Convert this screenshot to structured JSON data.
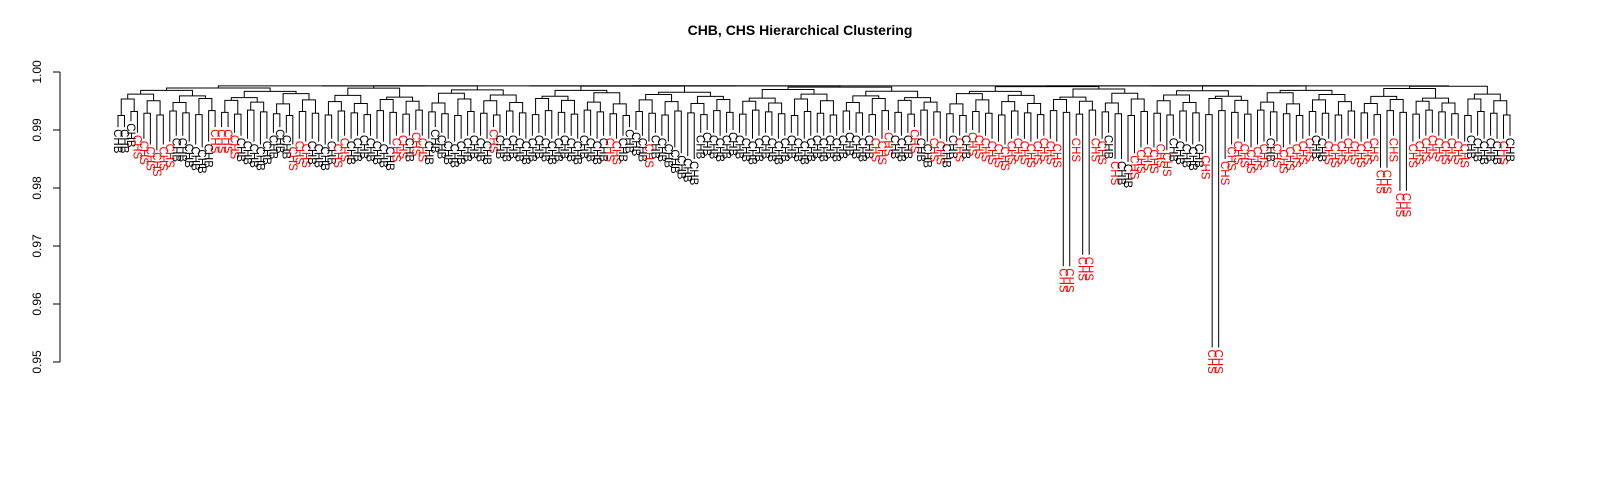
{
  "chart_data": {
    "type": "dendrogram",
    "title": "CHB, CHS Hierarchical Clustering",
    "xlabel": "",
    "ylabel": "",
    "ylim": [
      0.95,
      1.0
    ],
    "y_ticks": [
      "0.95",
      "0.96",
      "0.97",
      "0.98",
      "0.99",
      "1.00"
    ],
    "grid": false,
    "legend": "none",
    "colors": {
      "CHB": "#000000",
      "CHS": "#ff0000",
      "branch": "#000000"
    },
    "groups": [
      "CHB",
      "CHS"
    ],
    "leaves": [
      {
        "label": "CHB",
        "h": 0.9905
      },
      {
        "label": "CHB",
        "h": 0.9905
      },
      {
        "label": "CHB",
        "h": 0.9915
      },
      {
        "label": "CHS",
        "h": 0.9895
      },
      {
        "label": "CHS",
        "h": 0.9885
      },
      {
        "label": "CHS",
        "h": 0.9875
      },
      {
        "label": "CHS",
        "h": 0.9865
      },
      {
        "label": "CHS",
        "h": 0.9875
      },
      {
        "label": "CHS",
        "h": 0.988
      },
      {
        "label": "CHB",
        "h": 0.989
      },
      {
        "label": "CHB",
        "h": 0.989
      },
      {
        "label": "CHB",
        "h": 0.988
      },
      {
        "label": "CHB",
        "h": 0.9875
      },
      {
        "label": "CHB",
        "h": 0.987
      },
      {
        "label": "CHB",
        "h": 0.988
      },
      {
        "label": "CHS",
        "h": 0.9905
      },
      {
        "label": "CHS",
        "h": 0.9905
      },
      {
        "label": "CHS",
        "h": 0.9905
      },
      {
        "label": "CHS",
        "h": 0.9895
      },
      {
        "label": "CHB",
        "h": 0.989
      },
      {
        "label": "CHB",
        "h": 0.9885
      },
      {
        "label": "CHB",
        "h": 0.988
      },
      {
        "label": "CHB",
        "h": 0.9875
      },
      {
        "label": "CHB",
        "h": 0.9885
      },
      {
        "label": "CHB",
        "h": 0.9895
      },
      {
        "label": "CHB",
        "h": 0.9905
      },
      {
        "label": "CHB",
        "h": 0.9895
      },
      {
        "label": "CHS",
        "h": 0.9875
      },
      {
        "label": "CHS",
        "h": 0.9885
      },
      {
        "label": "CHS",
        "h": 0.988
      },
      {
        "label": "CHB",
        "h": 0.9885
      },
      {
        "label": "CHB",
        "h": 0.988
      },
      {
        "label": "CHB",
        "h": 0.9875
      },
      {
        "label": "CHB",
        "h": 0.9885
      },
      {
        "label": "CHS",
        "h": 0.988
      },
      {
        "label": "CHS",
        "h": 0.989
      },
      {
        "label": "CHB",
        "h": 0.9885
      },
      {
        "label": "CHB",
        "h": 0.989
      },
      {
        "label": "CHB",
        "h": 0.9895
      },
      {
        "label": "CHB",
        "h": 0.989
      },
      {
        "label": "CHB",
        "h": 0.9885
      },
      {
        "label": "CHB",
        "h": 0.988
      },
      {
        "label": "CHB",
        "h": 0.9875
      },
      {
        "label": "CHS",
        "h": 0.989
      },
      {
        "label": "CHS",
        "h": 0.9895
      },
      {
        "label": "CHB",
        "h": 0.989
      },
      {
        "label": "CHS",
        "h": 0.99
      },
      {
        "label": "CHS",
        "h": 0.989
      },
      {
        "label": "CHB",
        "h": 0.9885
      },
      {
        "label": "CHB",
        "h": 0.9905
      },
      {
        "label": "CHB",
        "h": 0.9895
      },
      {
        "label": "CHB",
        "h": 0.9885
      },
      {
        "label": "CHB",
        "h": 0.988
      },
      {
        "label": "CHB",
        "h": 0.9885
      },
      {
        "label": "CHB",
        "h": 0.989
      },
      {
        "label": "CHB",
        "h": 0.9895
      },
      {
        "label": "CHB",
        "h": 0.989
      },
      {
        "label": "CHB",
        "h": 0.9885
      },
      {
        "label": "CHS",
        "h": 0.9905
      },
      {
        "label": "CHB",
        "h": 0.9895
      },
      {
        "label": "CHB",
        "h": 0.989
      },
      {
        "label": "CHB",
        "h": 0.9895
      },
      {
        "label": "CHB",
        "h": 0.989
      },
      {
        "label": "CHB",
        "h": 0.9885
      },
      {
        "label": "CHB",
        "h": 0.989
      },
      {
        "label": "CHB",
        "h": 0.9895
      },
      {
        "label": "CHB",
        "h": 0.989
      },
      {
        "label": "CHB",
        "h": 0.9885
      },
      {
        "label": "CHB",
        "h": 0.989
      },
      {
        "label": "CHB",
        "h": 0.9895
      },
      {
        "label": "CHB",
        "h": 0.989
      },
      {
        "label": "CHB",
        "h": 0.9885
      },
      {
        "label": "CHB",
        "h": 0.9895
      },
      {
        "label": "CHB",
        "h": 0.989
      },
      {
        "label": "CHB",
        "h": 0.9885
      },
      {
        "label": "CHB",
        "h": 0.989
      },
      {
        "label": "CHS",
        "h": 0.989
      },
      {
        "label": "CHS",
        "h": 0.9885
      },
      {
        "label": "CHB",
        "h": 0.989
      },
      {
        "label": "CHB",
        "h": 0.9905
      },
      {
        "label": "CHB",
        "h": 0.99
      },
      {
        "label": "CHB",
        "h": 0.989
      },
      {
        "label": "CHS",
        "h": 0.988
      },
      {
        "label": "CHB",
        "h": 0.9895
      },
      {
        "label": "CHB",
        "h": 0.989
      },
      {
        "label": "CHB",
        "h": 0.988
      },
      {
        "label": "CHB",
        "h": 0.987
      },
      {
        "label": "CHB",
        "h": 0.986
      },
      {
        "label": "CHB",
        "h": 0.9855
      },
      {
        "label": "CHB",
        "h": 0.985
      },
      {
        "label": "CHB",
        "h": 0.9895
      },
      {
        "label": "CHB",
        "h": 0.99
      },
      {
        "label": "CHB",
        "h": 0.9895
      },
      {
        "label": "CHB",
        "h": 0.989
      },
      {
        "label": "CHB",
        "h": 0.9895
      },
      {
        "label": "CHB",
        "h": 0.99
      },
      {
        "label": "CHB",
        "h": 0.9895
      },
      {
        "label": "CHB",
        "h": 0.989
      },
      {
        "label": "CHB",
        "h": 0.9885
      },
      {
        "label": "CHB",
        "h": 0.989
      },
      {
        "label": "CHB",
        "h": 0.9895
      },
      {
        "label": "CHB",
        "h": 0.989
      },
      {
        "label": "CHB",
        "h": 0.9885
      },
      {
        "label": "CHB",
        "h": 0.989
      },
      {
        "label": "CHB",
        "h": 0.9895
      },
      {
        "label": "CHB",
        "h": 0.989
      },
      {
        "label": "CHB",
        "h": 0.9885
      },
      {
        "label": "CHB",
        "h": 0.989
      },
      {
        "label": "CHB",
        "h": 0.9895
      },
      {
        "label": "CHB",
        "h": 0.989
      },
      {
        "label": "CHB",
        "h": 0.9895
      },
      {
        "label": "CHB",
        "h": 0.989
      },
      {
        "label": "CHB",
        "h": 0.9895
      },
      {
        "label": "CHB",
        "h": 0.99
      },
      {
        "label": "CHB",
        "h": 0.9895
      },
      {
        "label": "CHB",
        "h": 0.989
      },
      {
        "label": "CHB",
        "h": 0.9895
      },
      {
        "label": "CHS",
        "h": 0.989
      },
      {
        "label": "CHS",
        "h": 0.9885
      },
      {
        "label": "CHS",
        "h": 0.99
      },
      {
        "label": "CHB",
        "h": 0.9895
      },
      {
        "label": "CHB",
        "h": 0.989
      },
      {
        "label": "CHB",
        "h": 0.9895
      },
      {
        "label": "CHS",
        "h": 0.9905
      },
      {
        "label": "CHB",
        "h": 0.989
      },
      {
        "label": "CHB",
        "h": 0.988
      },
      {
        "label": "CHS",
        "h": 0.989
      },
      {
        "label": "CHS",
        "h": 0.9885
      },
      {
        "label": "CHB",
        "h": 0.988
      },
      {
        "label": "CHB",
        "h": 0.9895
      },
      {
        "label": "CHS",
        "h": 0.989
      },
      {
        "label": "CHB",
        "h": 0.9895
      },
      {
        "label": "CHS",
        "h": 0.99
      },
      {
        "label": "CHS",
        "h": 0.9895
      },
      {
        "label": "CHS",
        "h": 0.989
      },
      {
        "label": "CHS",
        "h": 0.9885
      },
      {
        "label": "CHS",
        "h": 0.988
      },
      {
        "label": "CHS",
        "h": 0.9875
      },
      {
        "label": "CHS",
        "h": 0.9885
      },
      {
        "label": "CHS",
        "h": 0.989
      },
      {
        "label": "CHS",
        "h": 0.9885
      },
      {
        "label": "CHS",
        "h": 0.988
      },
      {
        "label": "CHS",
        "h": 0.9885
      },
      {
        "label": "CHS",
        "h": 0.989
      },
      {
        "label": "CHS",
        "h": 0.9885
      },
      {
        "label": "CHS",
        "h": 0.988
      },
      {
        "label": "CHS",
        "h": 0.9665
      },
      {
        "label": "CHS",
        "h": 0.9665
      },
      {
        "label": "CHS",
        "h": 0.989
      },
      {
        "label": "CHS",
        "h": 0.9685
      },
      {
        "label": "CHS",
        "h": 0.9685
      },
      {
        "label": "CHS",
        "h": 0.989
      },
      {
        "label": "CHS",
        "h": 0.9885
      },
      {
        "label": "CHB",
        "h": 0.9895
      },
      {
        "label": "CHS",
        "h": 0.985
      },
      {
        "label": "CHB",
        "h": 0.985
      },
      {
        "label": "CHB",
        "h": 0.9845
      },
      {
        "label": "CHS",
        "h": 0.986
      },
      {
        "label": "CHS",
        "h": 0.987
      },
      {
        "label": "CHS",
        "h": 0.9875
      },
      {
        "label": "CHS",
        "h": 0.987
      },
      {
        "label": "CHS",
        "h": 0.988
      },
      {
        "label": "CHS",
        "h": 0.9865
      },
      {
        "label": "CHB",
        "h": 0.989
      },
      {
        "label": "CHB",
        "h": 0.9885
      },
      {
        "label": "CHB",
        "h": 0.988
      },
      {
        "label": "CHB",
        "h": 0.9875
      },
      {
        "label": "CHB",
        "h": 0.988
      },
      {
        "label": "CHS",
        "h": 0.986
      },
      {
        "label": "CHS",
        "h": 0.9525
      },
      {
        "label": "CHS",
        "h": 0.9525
      },
      {
        "label": "CHS",
        "h": 0.985
      },
      {
        "label": "CHS",
        "h": 0.9875
      },
      {
        "label": "CHS",
        "h": 0.9885
      },
      {
        "label": "CHS",
        "h": 0.988
      },
      {
        "label": "CHS",
        "h": 0.987
      },
      {
        "label": "CHS",
        "h": 0.9875
      },
      {
        "label": "CHS",
        "h": 0.988
      },
      {
        "label": "CHB",
        "h": 0.989
      },
      {
        "label": "CHS",
        "h": 0.988
      },
      {
        "label": "CHS",
        "h": 0.987
      },
      {
        "label": "CHS",
        "h": 0.9875
      },
      {
        "label": "CHS",
        "h": 0.988
      },
      {
        "label": "CHS",
        "h": 0.9885
      },
      {
        "label": "CHS",
        "h": 0.989
      },
      {
        "label": "CHB",
        "h": 0.9895
      },
      {
        "label": "CHB",
        "h": 0.989
      },
      {
        "label": "CHS",
        "h": 0.9885
      },
      {
        "label": "CHS",
        "h": 0.988
      },
      {
        "label": "CHS",
        "h": 0.9885
      },
      {
        "label": "CHS",
        "h": 0.989
      },
      {
        "label": "CHS",
        "h": 0.9885
      },
      {
        "label": "CHS",
        "h": 0.988
      },
      {
        "label": "CHS",
        "h": 0.9885
      },
      {
        "label": "CHS",
        "h": 0.989
      },
      {
        "label": "CHS",
        "h": 0.9835
      },
      {
        "label": "CHS",
        "h": 0.9835
      },
      {
        "label": "CHS",
        "h": 0.989
      },
      {
        "label": "CHS",
        "h": 0.9795
      },
      {
        "label": "CHS",
        "h": 0.9795
      },
      {
        "label": "CHS",
        "h": 0.988
      },
      {
        "label": "CHS",
        "h": 0.9885
      },
      {
        "label": "CHS",
        "h": 0.989
      },
      {
        "label": "CHS",
        "h": 0.9895
      },
      {
        "label": "CHS",
        "h": 0.989
      },
      {
        "label": "CHS",
        "h": 0.9885
      },
      {
        "label": "CHS",
        "h": 0.989
      },
      {
        "label": "CHS",
        "h": 0.9885
      },
      {
        "label": "CHS",
        "h": 0.988
      },
      {
        "label": "CHB",
        "h": 0.9895
      },
      {
        "label": "CHB",
        "h": 0.989
      },
      {
        "label": "CHB",
        "h": 0.9885
      },
      {
        "label": "CHB",
        "h": 0.989
      },
      {
        "label": "CHB",
        "h": 0.9885
      },
      {
        "label": "CHS",
        "h": 0.9885
      },
      {
        "label": "CHB",
        "h": 0.989
      }
    ]
  }
}
